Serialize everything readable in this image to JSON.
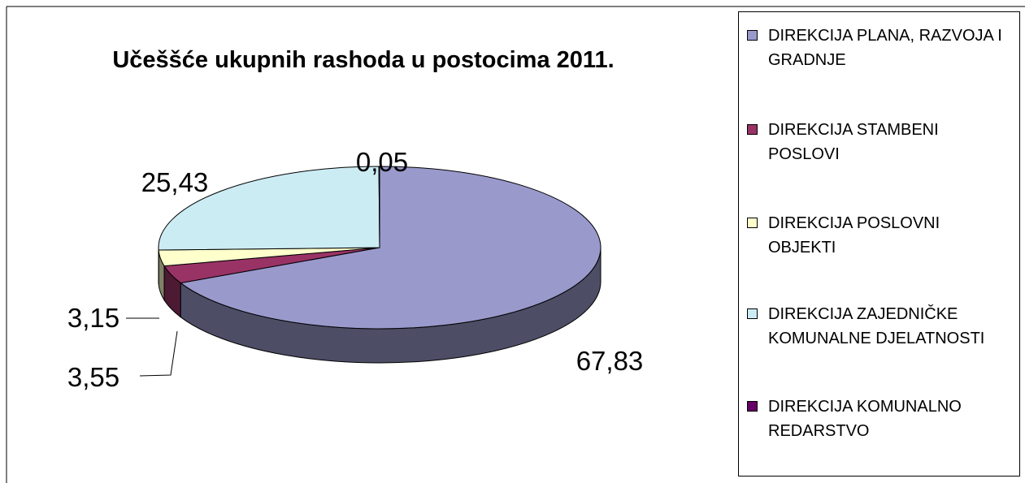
{
  "chart_data": {
    "type": "pie3d",
    "title": "Učeššće ukupnih rashoda u postocima 2011.",
    "categories": [
      "DIREKCIJA PLANA, RAZVOJA I GRADNJE",
      "DIREKCIJA STAMBENI POSLOVI",
      "DIREKCIJA POSLOVNI OBJEKTI",
      "DIREKCIJA ZAJEDNIČKE KOMUNALNE DJELATNOSTI",
      "DIREKCIJA KOMUNALNO REDARSTVO"
    ],
    "values": [
      67.83,
      3.55,
      3.15,
      25.43,
      0.05
    ],
    "value_labels": [
      "67,83",
      "3,55",
      "3,15",
      "25,43",
      "0,05"
    ],
    "colors": [
      "#9999cc",
      "#993366",
      "#ffffcc",
      "#ccecf4",
      "#660066"
    ],
    "legend": "right"
  }
}
